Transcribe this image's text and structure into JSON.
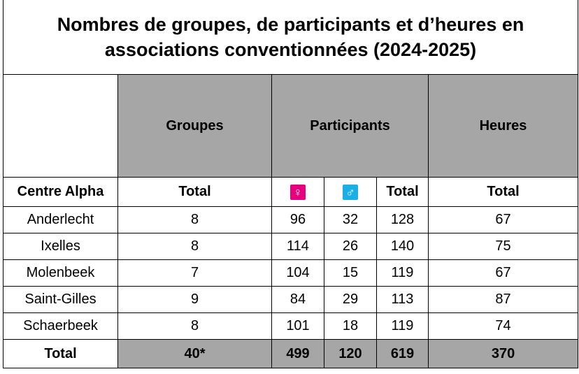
{
  "title": "Nombres de groupes, de participants et d’heures en associations conventionnées (2024-2025)",
  "header": {
    "groupes": "Groupes",
    "participants": "Participants",
    "heures": "Heures"
  },
  "subheader": {
    "centre": "Centre Alpha",
    "groupes_total": "Total",
    "female": "♀",
    "male": "♂",
    "participants_total": "Total",
    "heures_total": "Total"
  },
  "rows": [
    [
      "Anderlecht",
      8,
      96,
      32,
      128,
      67
    ],
    [
      "Ixelles",
      8,
      114,
      26,
      140,
      75
    ],
    [
      "Molenbeek",
      7,
      104,
      15,
      119,
      67
    ],
    [
      "Saint-Gilles",
      9,
      84,
      29,
      113,
      87
    ],
    [
      "Schaerbeek",
      8,
      101,
      18,
      119,
      74
    ]
  ],
  "total_row": [
    "Total",
    "40*",
    499,
    120,
    619,
    370
  ]
}
